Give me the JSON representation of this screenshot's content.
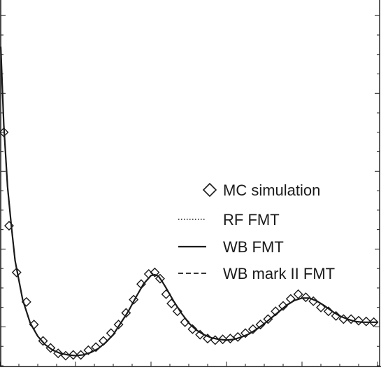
{
  "chart_data": {
    "type": "line",
    "title": "",
    "xlabel": "",
    "ylabel": "",
    "xlim": [
      0.0,
      5.0
    ],
    "ylim": [
      -0.5,
      4.2
    ],
    "grid": false,
    "legend_position": "right",
    "legend": [
      {
        "label": "MC simulation",
        "style": "diamond-marker"
      },
      {
        "label": "RF FMT",
        "style": "dotted-line"
      },
      {
        "label": "WB FMT",
        "style": "solid-line"
      },
      {
        "label": "WB mark II FMT",
        "style": "dashed-line"
      }
    ],
    "series": [
      {
        "name": "MC simulation",
        "style": "markers",
        "x": [
          0.05,
          0.12,
          0.22,
          0.35,
          0.45,
          0.57,
          0.67,
          0.77,
          0.87,
          0.97,
          1.07,
          1.17,
          1.27,
          1.37,
          1.47,
          1.57,
          1.67,
          1.77,
          1.87,
          1.97,
          2.05,
          2.12,
          2.2,
          2.27,
          2.35,
          2.45,
          2.55,
          2.65,
          2.75,
          2.85,
          2.95,
          3.05,
          3.15,
          3.25,
          3.35,
          3.45,
          3.55,
          3.65,
          3.75,
          3.85,
          3.95,
          4.05,
          4.15,
          4.25,
          4.35,
          4.45,
          4.55,
          4.65,
          4.75,
          4.85,
          4.95
        ],
        "y": [
          2.5,
          1.3,
          0.7,
          0.32,
          0.03,
          -0.18,
          -0.27,
          -0.34,
          -0.37,
          -0.36,
          -0.36,
          -0.3,
          -0.26,
          -0.18,
          -0.08,
          0.03,
          0.18,
          0.35,
          0.55,
          0.68,
          0.7,
          0.62,
          0.42,
          0.3,
          0.2,
          0.06,
          -0.03,
          -0.1,
          -0.15,
          -0.17,
          -0.16,
          -0.15,
          -0.13,
          -0.08,
          -0.03,
          0.03,
          0.1,
          0.2,
          0.27,
          0.36,
          0.42,
          0.38,
          0.33,
          0.25,
          0.2,
          0.14,
          0.1,
          0.1,
          0.08,
          0.07,
          0.06
        ]
      },
      {
        "name": "RF FMT",
        "style": "dotted",
        "x": [
          0.01,
          0.05,
          0.1,
          0.15,
          0.2,
          0.3,
          0.4,
          0.5,
          0.6,
          0.7,
          0.8,
          0.9,
          1.0,
          1.1,
          1.2,
          1.3,
          1.4,
          1.5,
          1.6,
          1.7,
          1.8,
          1.9,
          2.0,
          2.05,
          2.1,
          2.15,
          2.2,
          2.3,
          2.4,
          2.5,
          2.6,
          2.7,
          2.8,
          2.9,
          3.0,
          3.1,
          3.2,
          3.3,
          3.4,
          3.5,
          3.6,
          3.7,
          3.8,
          3.9,
          4.0,
          4.1,
          4.2,
          4.3,
          4.4,
          4.5,
          4.6,
          4.7,
          4.8,
          4.9,
          5.0
        ],
        "y": [
          3.6,
          2.6,
          1.8,
          1.3,
          0.85,
          0.35,
          0.05,
          -0.12,
          -0.23,
          -0.3,
          -0.34,
          -0.36,
          -0.37,
          -0.36,
          -0.33,
          -0.28,
          -0.2,
          -0.1,
          0.05,
          0.2,
          0.38,
          0.55,
          0.66,
          0.67,
          0.65,
          0.58,
          0.5,
          0.33,
          0.18,
          0.05,
          -0.04,
          -0.1,
          -0.14,
          -0.16,
          -0.17,
          -0.16,
          -0.13,
          -0.09,
          -0.03,
          0.04,
          0.12,
          0.2,
          0.28,
          0.34,
          0.37,
          0.37,
          0.33,
          0.27,
          0.2,
          0.14,
          0.1,
          0.07,
          0.06,
          0.06,
          0.06
        ]
      },
      {
        "name": "WB FMT",
        "style": "solid",
        "x": [
          0.01,
          0.05,
          0.1,
          0.15,
          0.2,
          0.3,
          0.4,
          0.5,
          0.6,
          0.7,
          0.8,
          0.9,
          1.0,
          1.1,
          1.2,
          1.3,
          1.4,
          1.5,
          1.6,
          1.7,
          1.8,
          1.9,
          2.0,
          2.05,
          2.1,
          2.15,
          2.2,
          2.3,
          2.4,
          2.5,
          2.6,
          2.7,
          2.8,
          2.9,
          3.0,
          3.1,
          3.2,
          3.3,
          3.4,
          3.5,
          3.6,
          3.7,
          3.8,
          3.9,
          4.0,
          4.1,
          4.2,
          4.3,
          4.4,
          4.5,
          4.6,
          4.7,
          4.8,
          4.9,
          5.0
        ],
        "y": [
          3.6,
          2.6,
          1.8,
          1.3,
          0.85,
          0.35,
          0.05,
          -0.12,
          -0.23,
          -0.3,
          -0.34,
          -0.36,
          -0.37,
          -0.36,
          -0.33,
          -0.28,
          -0.2,
          -0.1,
          0.05,
          0.2,
          0.38,
          0.55,
          0.66,
          0.67,
          0.65,
          0.58,
          0.5,
          0.33,
          0.18,
          0.05,
          -0.04,
          -0.1,
          -0.14,
          -0.16,
          -0.17,
          -0.16,
          -0.13,
          -0.09,
          -0.03,
          0.04,
          0.12,
          0.2,
          0.28,
          0.34,
          0.37,
          0.37,
          0.33,
          0.27,
          0.2,
          0.14,
          0.1,
          0.07,
          0.06,
          0.06,
          0.06
        ]
      },
      {
        "name": "WB mark II FMT",
        "style": "dashed",
        "x": [
          0.01,
          0.05,
          0.1,
          0.15,
          0.2,
          0.3,
          0.4,
          0.5,
          0.6,
          0.7,
          0.8,
          0.9,
          1.0,
          1.1,
          1.2,
          1.3,
          1.4,
          1.5,
          1.6,
          1.7,
          1.8,
          1.9,
          2.0,
          2.05,
          2.1,
          2.15,
          2.2,
          2.3,
          2.4,
          2.5,
          2.6,
          2.7,
          2.8,
          2.9,
          3.0,
          3.1,
          3.2,
          3.3,
          3.4,
          3.5,
          3.6,
          3.7,
          3.8,
          3.9,
          4.0,
          4.1,
          4.2,
          4.3,
          4.4,
          4.5,
          4.6,
          4.7,
          4.8,
          4.9,
          5.0
        ],
        "y": [
          3.6,
          2.6,
          1.8,
          1.3,
          0.85,
          0.35,
          0.05,
          -0.12,
          -0.23,
          -0.3,
          -0.34,
          -0.36,
          -0.37,
          -0.36,
          -0.33,
          -0.28,
          -0.2,
          -0.1,
          0.05,
          0.2,
          0.38,
          0.55,
          0.66,
          0.67,
          0.65,
          0.58,
          0.5,
          0.33,
          0.18,
          0.05,
          -0.04,
          -0.1,
          -0.14,
          -0.16,
          -0.17,
          -0.16,
          -0.13,
          -0.09,
          -0.03,
          0.04,
          0.12,
          0.2,
          0.28,
          0.34,
          0.37,
          0.37,
          0.33,
          0.27,
          0.2,
          0.14,
          0.1,
          0.07,
          0.06,
          0.06,
          0.06
        ]
      }
    ]
  }
}
